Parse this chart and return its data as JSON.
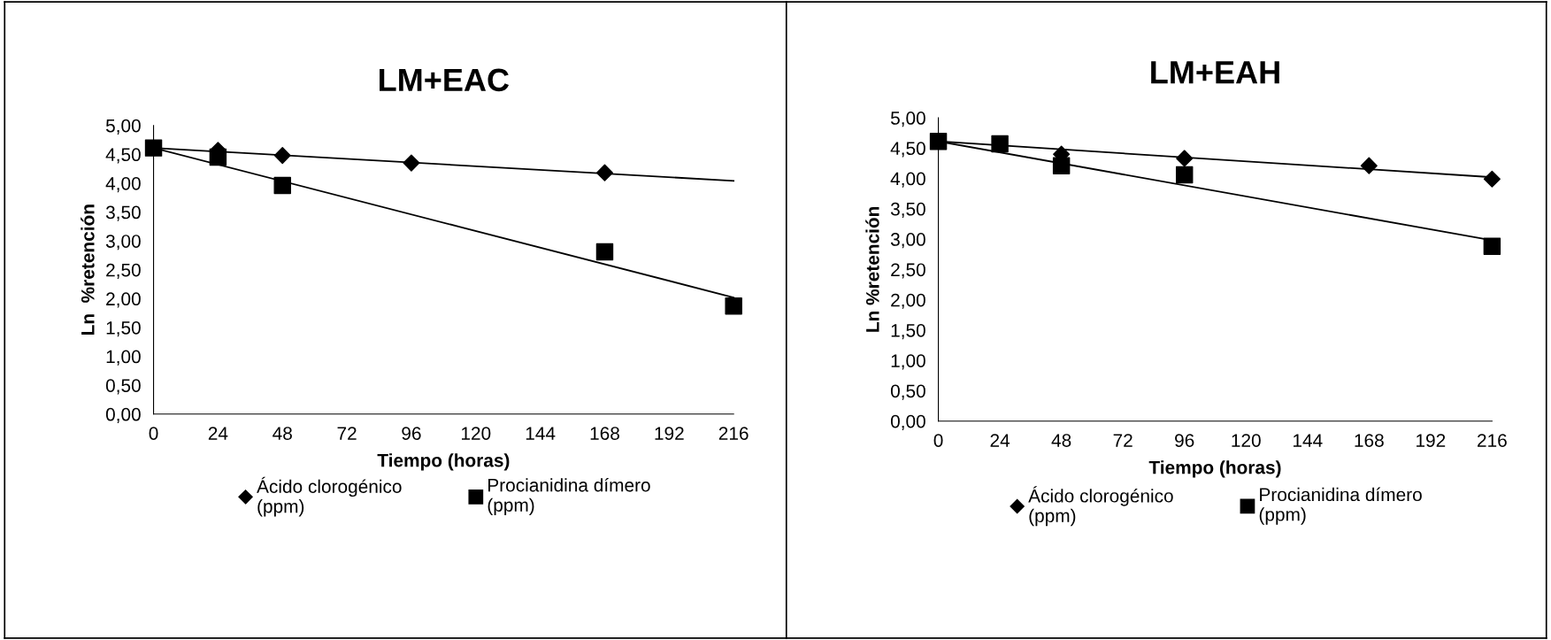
{
  "chart_data": [
    {
      "type": "scatter",
      "title": "LM+EAC",
      "xlabel": "Tiempo (horas)",
      "ylabel": "Ln  %retención",
      "xlim": [
        0,
        216
      ],
      "xticks": [
        0,
        24,
        48,
        72,
        96,
        120,
        144,
        168,
        192,
        216
      ],
      "ylim": [
        0,
        5
      ],
      "yticks": [
        {
          "value": 0,
          "label": "0,00"
        },
        {
          "value": 0.5,
          "label": "0,50"
        },
        {
          "value": 1,
          "label": "1,00"
        },
        {
          "value": 1.5,
          "label": "1,50"
        },
        {
          "value": 2,
          "label": "2,00"
        },
        {
          "value": 2.5,
          "label": "2,50"
        },
        {
          "value": 3,
          "label": "3,00"
        },
        {
          "value": 3.5,
          "label": "3,50"
        },
        {
          "value": 4,
          "label": "4,00"
        },
        {
          "value": 4.5,
          "label": "4,50"
        },
        {
          "value": 5,
          "label": "5,00"
        }
      ],
      "grid": false,
      "legend": "bottom",
      "series": [
        {
          "type": "line",
          "color": "#000000",
          "marker": "none",
          "line_style": "solid",
          "x": [
            0,
            216
          ],
          "values": [
            4.61,
            4.04
          ]
        },
        {
          "type": "line",
          "color": "#000000",
          "marker": "none",
          "line_style": "solid",
          "x": [
            0,
            216
          ],
          "values": [
            4.61,
            2.02
          ]
        },
        {
          "name": "Ácido clorogénico\n(ppm)",
          "color": "#000000",
          "marker": "diamond",
          "x": [
            24,
            48,
            96,
            168
          ],
          "values": [
            4.57,
            4.48,
            4.35,
            4.18
          ]
        },
        {
          "name": "Procianidina dímero\n(ppm)",
          "color": "#000000",
          "marker": "square",
          "x": [
            0,
            24,
            48,
            168,
            216
          ],
          "values": [
            4.61,
            4.45,
            3.96,
            2.81,
            1.87
          ]
        }
      ]
    },
    {
      "type": "scatter",
      "title": "LM+EAH",
      "xlabel": "Tiempo (horas)",
      "ylabel": "Ln %retención",
      "xlim": [
        0,
        216
      ],
      "xticks": [
        0,
        24,
        48,
        72,
        96,
        120,
        144,
        168,
        192,
        216
      ],
      "ylim": [
        0,
        5
      ],
      "yticks": [
        {
          "value": 0,
          "label": "0,00"
        },
        {
          "value": 0.5,
          "label": "0,50"
        },
        {
          "value": 1,
          "label": "1,00"
        },
        {
          "value": 1.5,
          "label": "1,50"
        },
        {
          "value": 2,
          "label": "2,00"
        },
        {
          "value": 2.5,
          "label": "2,50"
        },
        {
          "value": 3,
          "label": "3,00"
        },
        {
          "value": 3.5,
          "label": "3,50"
        },
        {
          "value": 4,
          "label": "4,00"
        },
        {
          "value": 4.5,
          "label": "4,50"
        },
        {
          "value": 5,
          "label": "5,00"
        }
      ],
      "grid": false,
      "legend": "bottom",
      "series": [
        {
          "type": "line",
          "color": "#000000",
          "marker": "none",
          "line_style": "solid",
          "x": [
            0,
            216
          ],
          "values": [
            4.61,
            4.02
          ]
        },
        {
          "type": "line",
          "color": "#000000",
          "marker": "none",
          "line_style": "solid",
          "x": [
            0,
            216
          ],
          "values": [
            4.61,
            2.98
          ]
        },
        {
          "name": "Ácido clorogénico\n(ppm)",
          "color": "#000000",
          "marker": "diamond",
          "x": [
            48,
            96,
            168,
            216
          ],
          "values": [
            4.4,
            4.33,
            4.21,
            3.99
          ]
        },
        {
          "name": "Procianidina dímero\n(ppm)",
          "color": "#000000",
          "marker": "square",
          "x": [
            0,
            24,
            48,
            96,
            216
          ],
          "values": [
            4.61,
            4.57,
            4.21,
            4.06,
            2.88
          ]
        }
      ]
    }
  ]
}
